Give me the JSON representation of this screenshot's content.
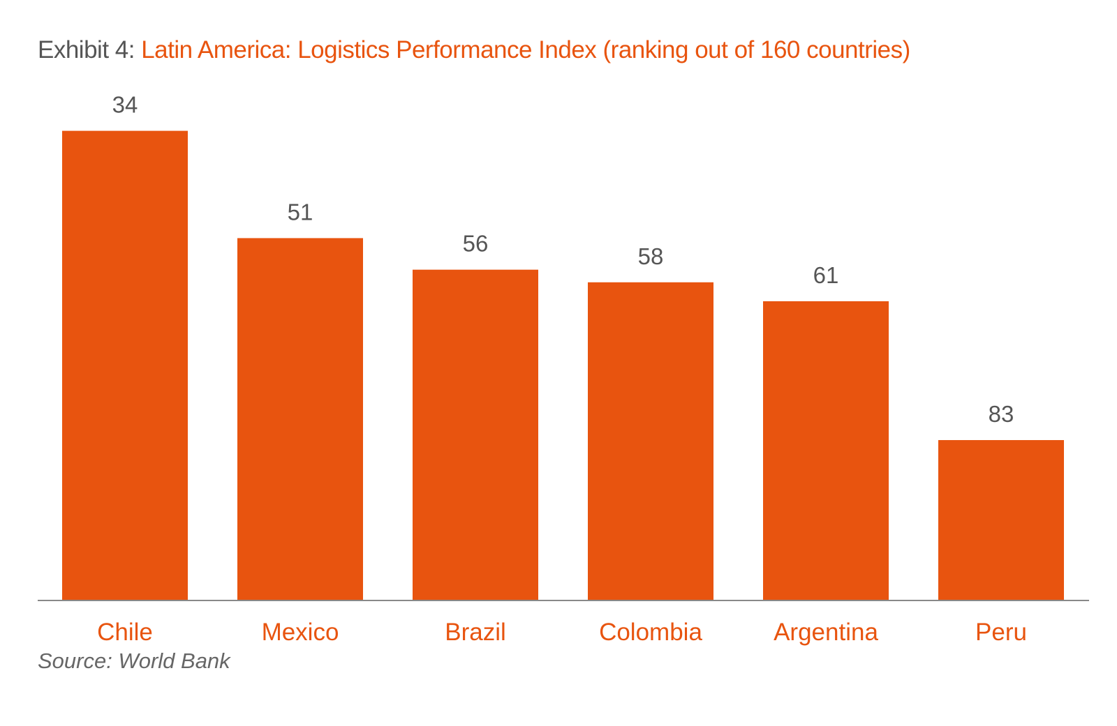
{
  "title": {
    "prefix": "Exhibit 4:",
    "text": "Latin America: Logistics Performance Index (ranking out of 160 countries)"
  },
  "source": "Source: World Bank",
  "colors": {
    "bar": "#e8540f",
    "category_label": "#e8540f",
    "axis": "#888888"
  },
  "chart_data": {
    "type": "bar",
    "title": "Latin America: Logistics Performance Index (ranking out of 160 countries)",
    "categories": [
      "Chile",
      "Mexico",
      "Brazil",
      "Colombia",
      "Argentina",
      "Peru"
    ],
    "values": [
      34,
      51,
      56,
      58,
      61,
      83
    ],
    "data_labels": [
      "34",
      "51",
      "56",
      "58",
      "61",
      "83"
    ],
    "xlabel": "",
    "ylabel": "",
    "y_axis_visible": false,
    "bar_height_encoding": "inverse_rank",
    "grid": false,
    "legend": "none"
  }
}
